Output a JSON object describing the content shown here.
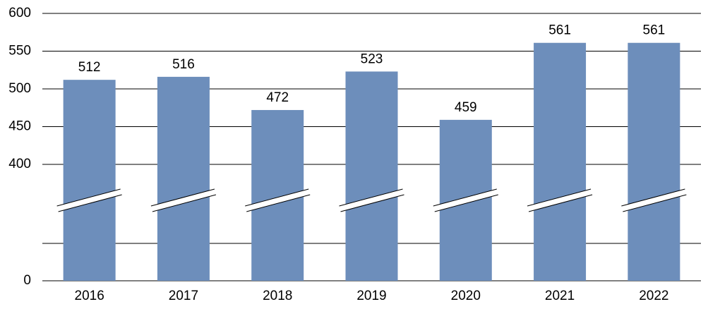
{
  "chart_data": {
    "type": "bar",
    "categories": [
      "2016",
      "2017",
      "2018",
      "2019",
      "2020",
      "2021",
      "2022"
    ],
    "values": [
      512,
      516,
      472,
      523,
      459,
      561,
      561
    ],
    "color": "#6d8ebb",
    "ylim": [
      0,
      600
    ],
    "yticks": [
      0,
      400,
      450,
      500,
      550,
      600
    ],
    "axis_break": true,
    "grid": true
  }
}
